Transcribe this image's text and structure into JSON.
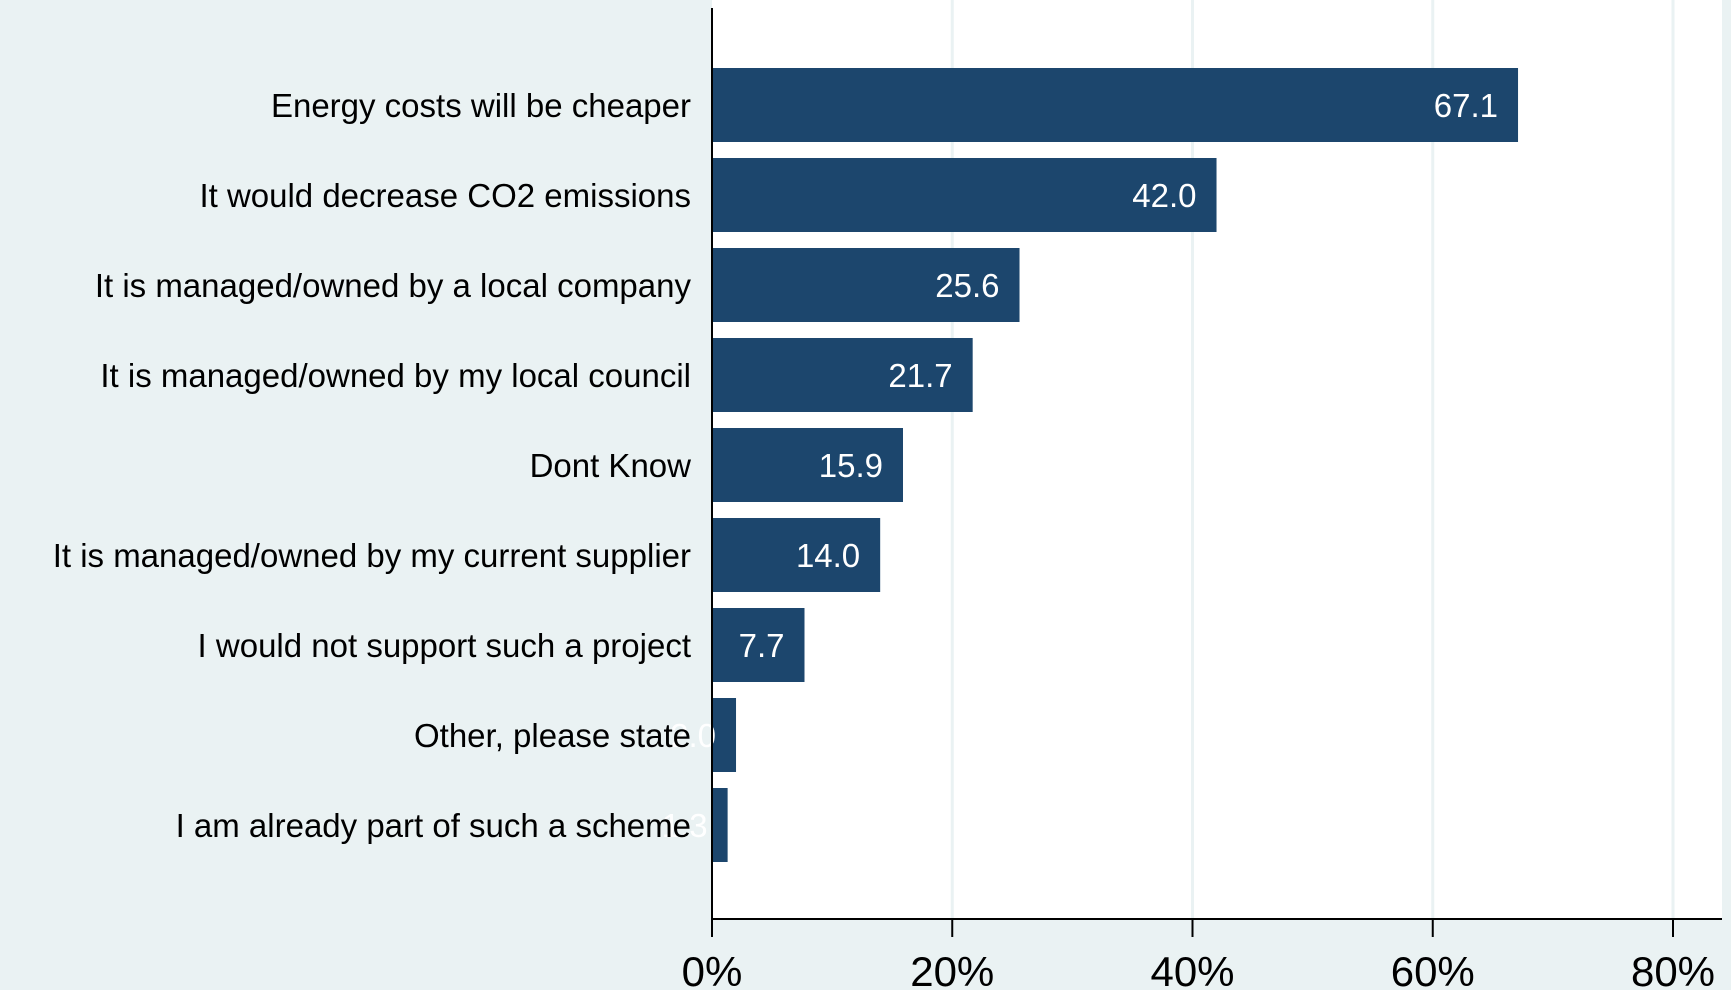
{
  "colors": {
    "background": "#eaf2f3",
    "plot_background": "#ffffff",
    "bar": "#1c466d",
    "bar_label": "#ffffff",
    "gridline": "#eaf2f3",
    "axis": "#000000",
    "text": "#000000"
  },
  "chart_data": {
    "type": "bar",
    "orientation": "horizontal",
    "title": "",
    "xlabel": "",
    "ylabel": "",
    "categories": [
      "Energy costs will be cheaper",
      "It would decrease CO2 emissions",
      "It is managed/owned by a local company",
      "It is managed/owned by my local council",
      "Dont Know",
      "It is managed/owned by my current supplier",
      "I would not support such a project",
      "Other, please state",
      "I am already part of such a scheme"
    ],
    "values": [
      67.1,
      42.0,
      25.6,
      21.7,
      15.9,
      14.0,
      7.7,
      2.0,
      1.3
    ],
    "value_labels": [
      "67.1",
      "42.0",
      "25.6",
      "21.7",
      "15.9",
      "14.0",
      "7.7",
      "2.0",
      "1.3"
    ],
    "xlim": [
      0,
      80
    ],
    "xticks": [
      0,
      20,
      40,
      60,
      80
    ],
    "xtick_labels": [
      "0%",
      "20%",
      "40%",
      "60%",
      "80%"
    ],
    "grid": true,
    "legend": "none"
  }
}
